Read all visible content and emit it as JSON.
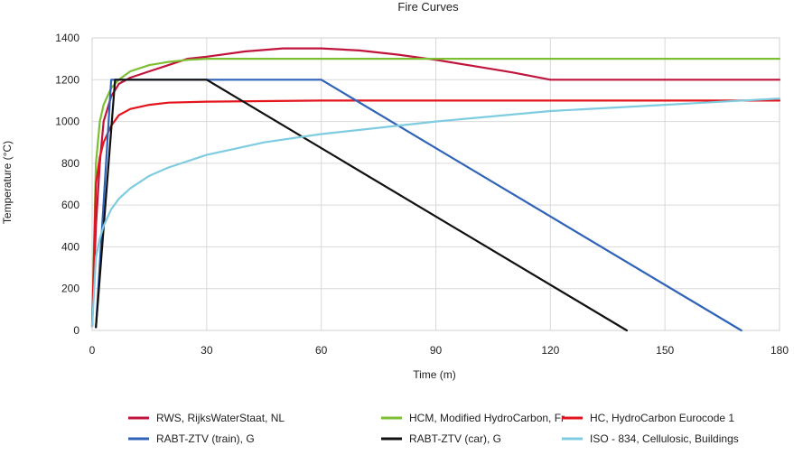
{
  "chart_data": {
    "type": "line",
    "title": "Fire Curves",
    "xlabel": "Time (m)",
    "ylabel": "Temperature (°C)",
    "xlim": [
      0,
      180
    ],
    "ylim": [
      0,
      1400
    ],
    "xticks": [
      0,
      30,
      60,
      90,
      120,
      150,
      180
    ],
    "yticks": [
      0,
      200,
      400,
      600,
      800,
      1000,
      1200,
      1400
    ],
    "grid": true,
    "legend_position": "bottom",
    "series": [
      {
        "name": "RWS, RijksWaterStaat, NL",
        "color": "#c0143c",
        "points": [
          [
            0,
            20
          ],
          [
            1,
            500
          ],
          [
            2,
            800
          ],
          [
            3,
            1000
          ],
          [
            5,
            1120
          ],
          [
            7,
            1180
          ],
          [
            10,
            1210
          ],
          [
            15,
            1240
          ],
          [
            20,
            1270
          ],
          [
            25,
            1300
          ],
          [
            30,
            1310
          ],
          [
            40,
            1335
          ],
          [
            50,
            1350
          ],
          [
            60,
            1350
          ],
          [
            70,
            1340
          ],
          [
            80,
            1320
          ],
          [
            90,
            1295
          ],
          [
            100,
            1265
          ],
          [
            110,
            1235
          ],
          [
            120,
            1200
          ],
          [
            180,
            1200
          ]
        ]
      },
      {
        "name": "HCM, Modified HydroCarbon, Fr",
        "color": "#7cbf33",
        "points": [
          [
            0,
            20
          ],
          [
            1,
            800
          ],
          [
            2,
            1000
          ],
          [
            3,
            1080
          ],
          [
            5,
            1160
          ],
          [
            7,
            1200
          ],
          [
            10,
            1240
          ],
          [
            15,
            1270
          ],
          [
            20,
            1285
          ],
          [
            25,
            1295
          ],
          [
            30,
            1300
          ],
          [
            60,
            1300
          ],
          [
            90,
            1300
          ],
          [
            120,
            1300
          ],
          [
            180,
            1300
          ]
        ]
      },
      {
        "name": "HC, HydroCarbon Eurocode 1",
        "color": "#e3141c",
        "points": [
          [
            0,
            20
          ],
          [
            1,
            700
          ],
          [
            2,
            830
          ],
          [
            3,
            900
          ],
          [
            5,
            980
          ],
          [
            7,
            1030
          ],
          [
            10,
            1060
          ],
          [
            15,
            1080
          ],
          [
            20,
            1090
          ],
          [
            30,
            1095
          ],
          [
            60,
            1100
          ],
          [
            90,
            1100
          ],
          [
            120,
            1100
          ],
          [
            180,
            1100
          ]
        ]
      },
      {
        "name": "RABT-ZTV (train), G",
        "color": "#2f63b8",
        "points": [
          [
            1,
            15
          ],
          [
            5,
            1200
          ],
          [
            60,
            1200
          ],
          [
            170,
            0
          ]
        ]
      },
      {
        "name": "RABT-ZTV (car), G",
        "color": "#111111",
        "points": [
          [
            1,
            15
          ],
          [
            6,
            1200
          ],
          [
            30,
            1200
          ],
          [
            140,
            0
          ]
        ]
      },
      {
        "name": "ISO - 834, Cellulosic, Buildings",
        "color": "#7fcbe0",
        "points": [
          [
            0,
            20
          ],
          [
            1,
            350
          ],
          [
            2,
            440
          ],
          [
            3,
            500
          ],
          [
            5,
            580
          ],
          [
            7,
            630
          ],
          [
            10,
            680
          ],
          [
            15,
            740
          ],
          [
            20,
            780
          ],
          [
            30,
            840
          ],
          [
            45,
            900
          ],
          [
            60,
            940
          ],
          [
            90,
            1000
          ],
          [
            120,
            1050
          ],
          [
            150,
            1080
          ],
          [
            180,
            1110
          ]
        ]
      }
    ]
  }
}
